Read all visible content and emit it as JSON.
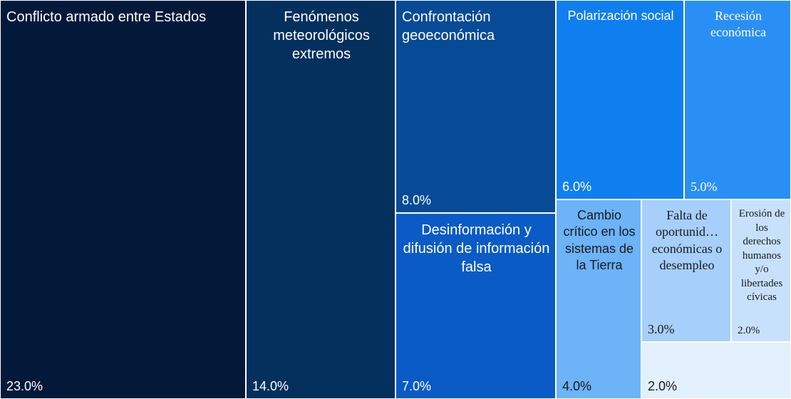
{
  "chart_data": {
    "type": "treemap",
    "categories": [
      "Conflicto armado entre Estados",
      "Fenómenos meteorológicos extremos",
      "Confrontación geoeconómica",
      "Desinformación y difusión de información falsa",
      "Polarización social",
      "Recesión económica",
      "Cambio crítico en los sistemas de la Tierra",
      "Falta de oportunid… económicas o desempleo",
      "Erosión de los derechos humanos y/o libertades cívicas",
      null
    ],
    "values": [
      23,
      14,
      8,
      7,
      6,
      5,
      4,
      3,
      2,
      2
    ],
    "value_labels": [
      "23.0%",
      "14.0%",
      "8.0%",
      "7.0%",
      "6.0%",
      "5.0%",
      "4.0%",
      "3.0%",
      "2.0%",
      "2.0%"
    ],
    "colors": [
      "#03193a",
      "#04305e",
      "#074b97",
      "#0a5bc6",
      "#0f7ff0",
      "#2a8ff5",
      "#6cb3f8",
      "#a6cffb",
      "#c7e1fc",
      "#e2f0fe"
    ]
  }
}
